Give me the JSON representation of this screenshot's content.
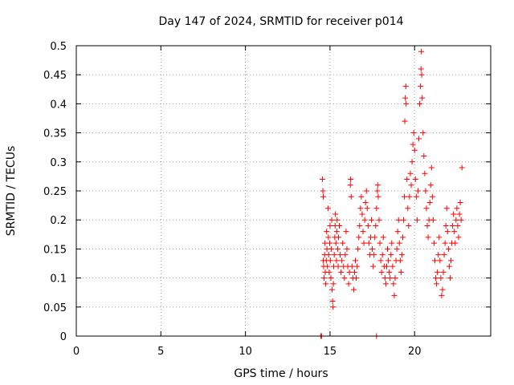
{
  "chart_data": {
    "type": "scatter",
    "title": "Day 147 of 2024, SRMTID for receiver p014",
    "xlabel": "GPS time / hours",
    "ylabel": "SRMTID / TECUs",
    "xlim": [
      0,
      24.5
    ],
    "ylim": [
      0,
      0.5
    ],
    "xticks": [
      0,
      5,
      10,
      15,
      20
    ],
    "xtick_labels": [
      "0",
      "5",
      "10",
      "15",
      "20"
    ],
    "yticks": [
      0,
      0.05,
      0.1,
      0.15,
      0.2,
      0.25,
      0.3,
      0.35,
      0.4,
      0.45,
      0.5
    ],
    "ytick_labels": [
      "0",
      "0.05",
      "0.1",
      "0.15",
      "0.2",
      "0.25",
      "0.3",
      "0.35",
      "0.4",
      "0.45",
      "0.5"
    ],
    "grid": true,
    "marker": "+",
    "color": "#ff0000",
    "series": [
      {
        "name": "SRMTID",
        "points": [
          [
            14.45,
            0.0
          ],
          [
            14.5,
            0.0
          ],
          [
            17.75,
            0.0
          ],
          [
            14.55,
            0.27
          ],
          [
            14.58,
            0.25
          ],
          [
            14.6,
            0.24
          ],
          [
            14.6,
            0.13
          ],
          [
            14.62,
            0.12
          ],
          [
            14.65,
            0.1
          ],
          [
            14.68,
            0.14
          ],
          [
            14.7,
            0.16
          ],
          [
            14.72,
            0.11
          ],
          [
            14.75,
            0.09
          ],
          [
            14.78,
            0.13
          ],
          [
            14.8,
            0.18
          ],
          [
            14.82,
            0.15
          ],
          [
            14.85,
            0.12
          ],
          [
            14.88,
            0.22
          ],
          [
            14.9,
            0.17
          ],
          [
            14.92,
            0.14
          ],
          [
            14.95,
            0.11
          ],
          [
            14.98,
            0.16
          ],
          [
            15.0,
            0.19
          ],
          [
            15.02,
            0.13
          ],
          [
            15.05,
            0.1
          ],
          [
            15.08,
            0.15
          ],
          [
            15.1,
            0.2
          ],
          [
            15.12,
            0.08
          ],
          [
            15.15,
            0.06
          ],
          [
            15.18,
            0.05
          ],
          [
            15.2,
            0.09
          ],
          [
            15.22,
            0.12
          ],
          [
            15.25,
            0.14
          ],
          [
            15.28,
            0.17
          ],
          [
            15.3,
            0.19
          ],
          [
            15.32,
            0.21
          ],
          [
            15.35,
            0.16
          ],
          [
            15.38,
            0.13
          ],
          [
            15.4,
            0.18
          ],
          [
            15.42,
            0.2
          ],
          [
            15.45,
            0.15
          ],
          [
            15.48,
            0.12
          ],
          [
            15.5,
            0.17
          ],
          [
            15.55,
            0.19
          ],
          [
            15.6,
            0.14
          ],
          [
            15.65,
            0.11
          ],
          [
            15.7,
            0.13
          ],
          [
            15.75,
            0.16
          ],
          [
            15.8,
            0.12
          ],
          [
            15.85,
            0.1
          ],
          [
            15.9,
            0.14
          ],
          [
            15.95,
            0.18
          ],
          [
            16.0,
            0.15
          ],
          [
            16.05,
            0.12
          ],
          [
            16.1,
            0.09
          ],
          [
            16.15,
            0.11
          ],
          [
            16.2,
            0.26
          ],
          [
            16.22,
            0.27
          ],
          [
            16.25,
            0.24
          ],
          [
            16.3,
            0.12
          ],
          [
            16.35,
            0.1
          ],
          [
            16.4,
            0.08
          ],
          [
            16.45,
            0.11
          ],
          [
            16.5,
            0.13
          ],
          [
            16.55,
            0.1
          ],
          [
            16.6,
            0.12
          ],
          [
            16.65,
            0.15
          ],
          [
            16.7,
            0.17
          ],
          [
            16.75,
            0.19
          ],
          [
            16.8,
            0.22
          ],
          [
            16.85,
            0.24
          ],
          [
            16.9,
            0.21
          ],
          [
            16.95,
            0.18
          ],
          [
            17.0,
            0.16
          ],
          [
            17.05,
            0.2
          ],
          [
            17.1,
            0.23
          ],
          [
            17.15,
            0.25
          ],
          [
            17.2,
            0.22
          ],
          [
            17.25,
            0.19
          ],
          [
            17.3,
            0.16
          ],
          [
            17.35,
            0.14
          ],
          [
            17.4,
            0.17
          ],
          [
            17.45,
            0.2
          ],
          [
            17.5,
            0.15
          ],
          [
            17.55,
            0.12
          ],
          [
            17.6,
            0.14
          ],
          [
            17.65,
            0.17
          ],
          [
            17.7,
            0.19
          ],
          [
            17.75,
            0.22
          ],
          [
            17.8,
            0.25
          ],
          [
            17.82,
            0.26
          ],
          [
            17.85,
            0.24
          ],
          [
            17.9,
            0.2
          ],
          [
            17.95,
            0.16
          ],
          [
            18.0,
            0.13
          ],
          [
            18.05,
            0.11
          ],
          [
            18.1,
            0.14
          ],
          [
            18.15,
            0.17
          ],
          [
            18.2,
            0.12
          ],
          [
            18.25,
            0.1
          ],
          [
            18.3,
            0.09
          ],
          [
            18.35,
            0.12
          ],
          [
            18.4,
            0.15
          ],
          [
            18.45,
            0.13
          ],
          [
            18.5,
            0.11
          ],
          [
            18.55,
            0.1
          ],
          [
            18.6,
            0.14
          ],
          [
            18.65,
            0.16
          ],
          [
            18.7,
            0.12
          ],
          [
            18.75,
            0.09
          ],
          [
            18.8,
            0.07
          ],
          [
            18.85,
            0.1
          ],
          [
            18.9,
            0.13
          ],
          [
            18.95,
            0.15
          ],
          [
            19.0,
            0.18
          ],
          [
            19.05,
            0.2
          ],
          [
            19.1,
            0.16
          ],
          [
            19.15,
            0.13
          ],
          [
            19.2,
            0.11
          ],
          [
            19.25,
            0.14
          ],
          [
            19.3,
            0.17
          ],
          [
            19.35,
            0.2
          ],
          [
            19.4,
            0.24
          ],
          [
            19.42,
            0.37
          ],
          [
            19.45,
            0.41
          ],
          [
            19.48,
            0.43
          ],
          [
            19.5,
            0.4
          ],
          [
            19.55,
            0.27
          ],
          [
            19.6,
            0.22
          ],
          [
            19.65,
            0.19
          ],
          [
            19.7,
            0.24
          ],
          [
            19.75,
            0.28
          ],
          [
            19.8,
            0.26
          ],
          [
            19.85,
            0.3
          ],
          [
            19.9,
            0.33
          ],
          [
            19.95,
            0.35
          ],
          [
            20.0,
            0.32
          ],
          [
            20.05,
            0.27
          ],
          [
            20.1,
            0.24
          ],
          [
            20.15,
            0.2
          ],
          [
            20.2,
            0.25
          ],
          [
            20.25,
            0.34
          ],
          [
            20.3,
            0.4
          ],
          [
            20.35,
            0.43
          ],
          [
            20.38,
            0.46
          ],
          [
            20.4,
            0.49
          ],
          [
            20.42,
            0.45
          ],
          [
            20.45,
            0.41
          ],
          [
            20.5,
            0.35
          ],
          [
            20.55,
            0.31
          ],
          [
            20.6,
            0.28
          ],
          [
            20.65,
            0.25
          ],
          [
            20.7,
            0.22
          ],
          [
            20.75,
            0.19
          ],
          [
            20.8,
            0.17
          ],
          [
            20.85,
            0.2
          ],
          [
            20.9,
            0.23
          ],
          [
            20.95,
            0.26
          ],
          [
            21.0,
            0.29
          ],
          [
            21.05,
            0.24
          ],
          [
            21.1,
            0.2
          ],
          [
            21.15,
            0.16
          ],
          [
            21.2,
            0.13
          ],
          [
            21.25,
            0.1
          ],
          [
            21.3,
            0.09
          ],
          [
            21.35,
            0.11
          ],
          [
            21.4,
            0.14
          ],
          [
            21.45,
            0.17
          ],
          [
            21.5,
            0.13
          ],
          [
            21.55,
            0.1
          ],
          [
            21.6,
            0.07
          ],
          [
            21.65,
            0.08
          ],
          [
            21.7,
            0.11
          ],
          [
            21.75,
            0.14
          ],
          [
            21.8,
            0.16
          ],
          [
            21.85,
            0.19
          ],
          [
            21.9,
            0.22
          ],
          [
            21.95,
            0.18
          ],
          [
            22.0,
            0.15
          ],
          [
            22.05,
            0.12
          ],
          [
            22.1,
            0.1
          ],
          [
            22.15,
            0.13
          ],
          [
            22.2,
            0.16
          ],
          [
            22.25,
            0.19
          ],
          [
            22.3,
            0.21
          ],
          [
            22.35,
            0.18
          ],
          [
            22.4,
            0.16
          ],
          [
            22.45,
            0.2
          ],
          [
            22.5,
            0.22
          ],
          [
            22.55,
            0.19
          ],
          [
            22.6,
            0.17
          ],
          [
            22.65,
            0.21
          ],
          [
            22.7,
            0.23
          ],
          [
            22.75,
            0.2
          ],
          [
            22.8,
            0.29
          ]
        ]
      }
    ]
  }
}
